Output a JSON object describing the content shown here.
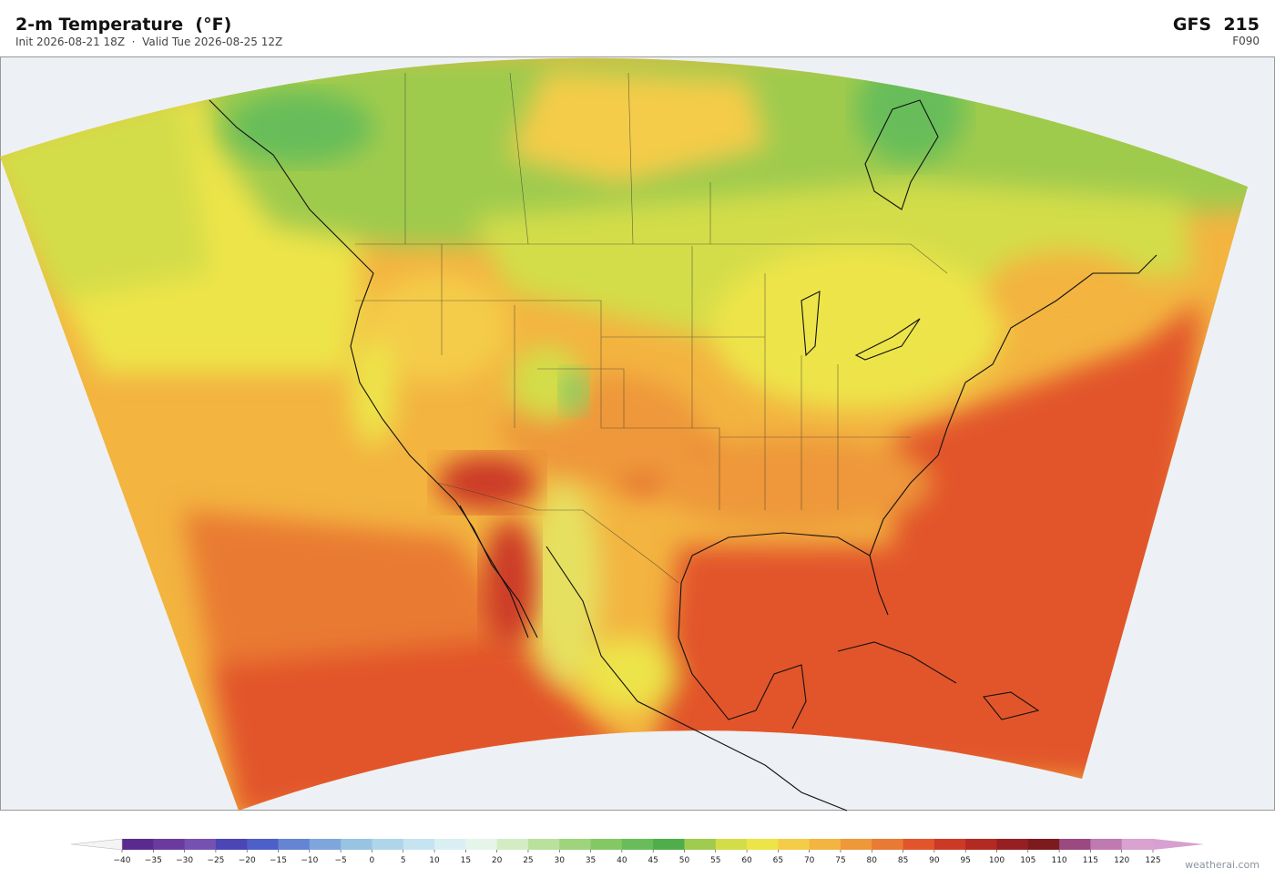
{
  "header": {
    "title": "2-m Temperature  (°F)",
    "subtitle": "Init 2026-08-21 18Z  ·  Valid Tue 2026-08-25 12Z",
    "model": "GFS  215",
    "forecast_hour": "F090"
  },
  "colorbar": {
    "ticks": [
      {
        "value": -40,
        "label": "−40"
      },
      {
        "value": -35,
        "label": "−35"
      },
      {
        "value": -30,
        "label": "−30"
      },
      {
        "value": -25,
        "label": "−25"
      },
      {
        "value": -20,
        "label": "−20"
      },
      {
        "value": -15,
        "label": "−15"
      },
      {
        "value": -10,
        "label": "−10"
      },
      {
        "value": -5,
        "label": "−5"
      },
      0,
      5,
      10,
      15,
      20,
      25,
      30,
      35,
      40,
      45,
      50,
      55,
      60,
      65,
      70,
      75,
      80,
      85,
      90,
      95,
      100,
      105,
      110,
      115,
      120,
      125
    ],
    "colors": [
      "#5b2a8e",
      "#6b3a9e",
      "#7552b2",
      "#4b45b5",
      "#4d5fc9",
      "#6585d3",
      "#7ea6dc",
      "#98c3e3",
      "#afd5eb",
      "#c5e3f0",
      "#d9eff3",
      "#e6f5ea",
      "#d3ecc4",
      "#b9e19c",
      "#9fd47d",
      "#84c866",
      "#68bd5a",
      "#4fae4a",
      "#9fcb4e",
      "#d3dd48",
      "#ede448",
      "#f4cc48",
      "#f3b440",
      "#ee983a",
      "#e97a33",
      "#e2552a",
      "#cc3a26",
      "#b32a22",
      "#951f22",
      "#7d1a1e",
      "#9a4a80",
      "#c07ab2",
      "#d9a2cf"
    ],
    "under_color": "#f4f4f4",
    "over_color": "#d7a0d0"
  },
  "footer": {
    "credit": "weatherai.com"
  }
}
